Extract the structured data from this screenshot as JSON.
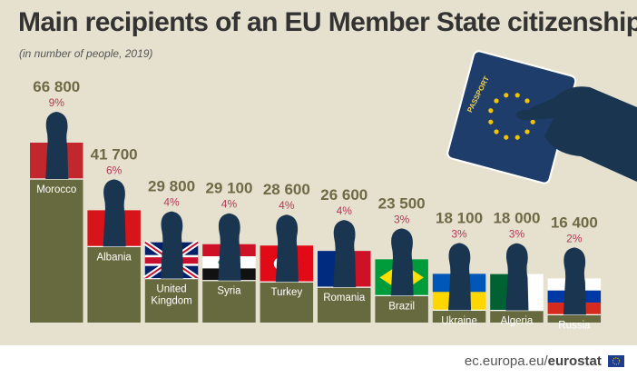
{
  "title": "Main recipients of an EU Member State citizenship",
  "subtitle": "(in number of people, 2019)",
  "footer": {
    "prefix": "ec.europa.eu/",
    "brand": "eurostat"
  },
  "passport": {
    "label": "PASSPORT"
  },
  "colors": {
    "panel": "#e6e1cf",
    "bar": "#676a3e",
    "value": "#6e6a45",
    "percent": "#b23a57",
    "silhouette": "#1a3550",
    "passport": "#1e3d6b",
    "stars": "#f2c300"
  },
  "chart_data": {
    "type": "bar",
    "title": "Main recipients of an EU Member State citizenship",
    "subtitle": "(in number of people, 2019)",
    "categories": [
      "Morocco",
      "Albania",
      "United Kingdom",
      "Syria",
      "Turkey",
      "Romania",
      "Brazil",
      "Ukraine",
      "Algeria",
      "Russia"
    ],
    "category_lines": [
      [
        "Morocco"
      ],
      [
        "Albania"
      ],
      [
        "United",
        "Kingdom"
      ],
      [
        "Syria"
      ],
      [
        "Turkey"
      ],
      [
        "Romania"
      ],
      [
        "Brazil"
      ],
      [
        "Ukraine"
      ],
      [
        "Algeria"
      ],
      [
        "Russia"
      ]
    ],
    "values": [
      66800,
      41700,
      29800,
      29100,
      28600,
      26600,
      23500,
      18100,
      18000,
      16400
    ],
    "value_labels": [
      "66 800",
      "41 700",
      "29 800",
      "29 100",
      "28 600",
      "26 600",
      "23 500",
      "18 100",
      "18 000",
      "16 400"
    ],
    "percent_labels": [
      "9%",
      "6%",
      "4%",
      "4%",
      "4%",
      "4%",
      "3%",
      "3%",
      "3%",
      "2%"
    ],
    "flags": [
      "morocco",
      "albania",
      "united-kingdom",
      "syria",
      "turkey",
      "romania",
      "brazil",
      "ukraine",
      "algeria",
      "russia"
    ],
    "unit": "number of people",
    "year": 2019
  }
}
